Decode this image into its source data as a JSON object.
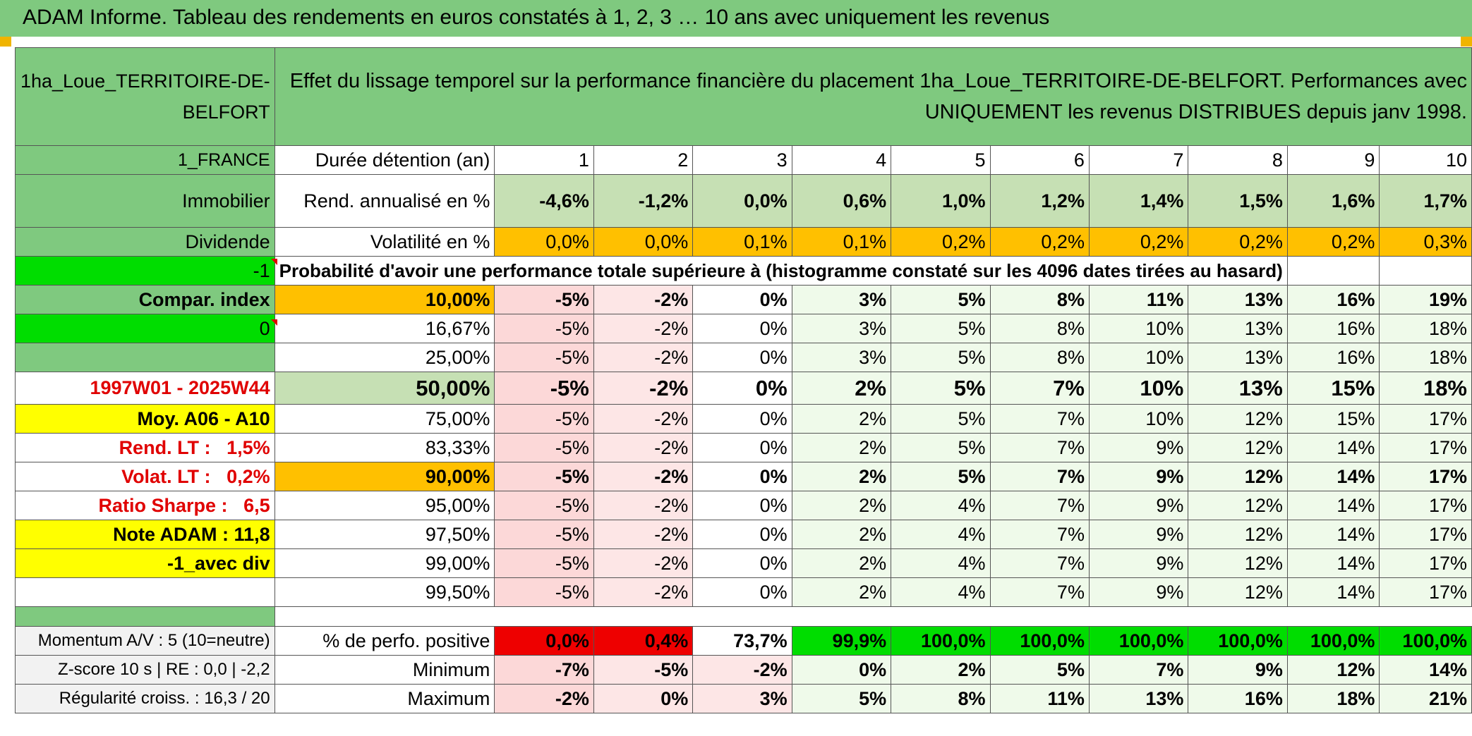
{
  "title": "ADAM Informe. Tableau des rendements en euros constatés à 1, 2, 3 … 10 ans avec uniquement les revenus",
  "header": {
    "fund_name": "1ha_Loue_TERRITOIRE-DE-BELFORT",
    "description": "Effet du lissage temporel sur la performance financière du placement 1ha_Loue_TERRITOIRE-DE-BELFORT. Performances avec UNIQUEMENT les revenus DISTRIBUES depuis janv 1998."
  },
  "side": {
    "country": "1_FRANCE",
    "category": "Immobilier",
    "dividend": "Dividende",
    "minus_one": "-1",
    "compar": "Compar. index",
    "zero": "0",
    "period": "1997W01 - 2025W44",
    "moy": "Moy. A06 - A10",
    "rend_lt_label": "Rend. LT :",
    "rend_lt_value": "1,5%",
    "volat_lt_label": "Volat. LT :",
    "volat_lt_value": "0,2%",
    "sharpe_label": "Ratio Sharpe :",
    "sharpe_value": "6,5",
    "note": "Note ADAM : 11,8",
    "avec_div": "-1_avec div",
    "momentum": "Momentum A/V : 5 (10=neutre)",
    "zscore": "Z-score 10 s | RE : 0,0 | -2,2",
    "regularite": "Régularité croiss. : 16,3 / 20"
  },
  "rows": {
    "duree_label": "Durée détention (an)",
    "years": [
      "1",
      "2",
      "3",
      "4",
      "5",
      "6",
      "7",
      "8",
      "9",
      "10"
    ],
    "rend_label": "Rend. annualisé en %",
    "rend": [
      "-4,6%",
      "-1,2%",
      "0,0%",
      "0,6%",
      "1,0%",
      "1,2%",
      "1,4%",
      "1,5%",
      "1,6%",
      "1,7%"
    ],
    "vol_label": "Volatilité en %",
    "vol": [
      "0,0%",
      "0,0%",
      "0,1%",
      "0,1%",
      "0,2%",
      "0,2%",
      "0,2%",
      "0,2%",
      "0,2%",
      "0,3%"
    ],
    "proba_label": "Probabilité d'avoir une performance totale supérieure à (histogramme constaté sur les 4096 dates tirées au hasard)"
  },
  "percentiles": [
    {
      "p": "10,00%",
      "v": [
        "-5%",
        "-2%",
        "0%",
        "3%",
        "5%",
        "8%",
        "11%",
        "13%",
        "16%",
        "19%"
      ]
    },
    {
      "p": "16,67%",
      "v": [
        "-5%",
        "-2%",
        "0%",
        "3%",
        "5%",
        "8%",
        "10%",
        "13%",
        "16%",
        "18%"
      ]
    },
    {
      "p": "25,00%",
      "v": [
        "-5%",
        "-2%",
        "0%",
        "3%",
        "5%",
        "8%",
        "10%",
        "13%",
        "16%",
        "18%"
      ]
    },
    {
      "p": "50,00%",
      "v": [
        "-5%",
        "-2%",
        "0%",
        "2%",
        "5%",
        "7%",
        "10%",
        "13%",
        "15%",
        "18%"
      ]
    },
    {
      "p": "75,00%",
      "v": [
        "-5%",
        "-2%",
        "0%",
        "2%",
        "5%",
        "7%",
        "10%",
        "12%",
        "15%",
        "17%"
      ]
    },
    {
      "p": "83,33%",
      "v": [
        "-5%",
        "-2%",
        "0%",
        "2%",
        "5%",
        "7%",
        "9%",
        "12%",
        "14%",
        "17%"
      ]
    },
    {
      "p": "90,00%",
      "v": [
        "-5%",
        "-2%",
        "0%",
        "2%",
        "5%",
        "7%",
        "9%",
        "12%",
        "14%",
        "17%"
      ]
    },
    {
      "p": "95,00%",
      "v": [
        "-5%",
        "-2%",
        "0%",
        "2%",
        "4%",
        "7%",
        "9%",
        "12%",
        "14%",
        "17%"
      ]
    },
    {
      "p": "97,50%",
      "v": [
        "-5%",
        "-2%",
        "0%",
        "2%",
        "4%",
        "7%",
        "9%",
        "12%",
        "14%",
        "17%"
      ]
    },
    {
      "p": "99,00%",
      "v": [
        "-5%",
        "-2%",
        "0%",
        "2%",
        "4%",
        "7%",
        "9%",
        "12%",
        "14%",
        "17%"
      ]
    },
    {
      "p": "99,50%",
      "v": [
        "-5%",
        "-2%",
        "0%",
        "2%",
        "4%",
        "7%",
        "9%",
        "12%",
        "14%",
        "17%"
      ]
    }
  ],
  "bottom": {
    "pos_label": "% de perfo. positive",
    "pos": [
      "0,0%",
      "0,4%",
      "73,7%",
      "99,9%",
      "100,0%",
      "100,0%",
      "100,0%",
      "100,0%",
      "100,0%",
      "100,0%"
    ],
    "min_label": "Minimum",
    "min": [
      "-7%",
      "-5%",
      "-2%",
      "0%",
      "2%",
      "5%",
      "7%",
      "9%",
      "12%",
      "14%"
    ],
    "max_label": "Maximum",
    "max": [
      "-2%",
      "0%",
      "3%",
      "5%",
      "8%",
      "11%",
      "13%",
      "16%",
      "18%",
      "21%"
    ]
  },
  "colors": {
    "header_green": "#7fc97f",
    "light_green": "#c6e0b4",
    "bright_green": "#00dd00",
    "orange": "#ffc000",
    "yellow": "#ffff00",
    "red_text": "#e00000"
  }
}
